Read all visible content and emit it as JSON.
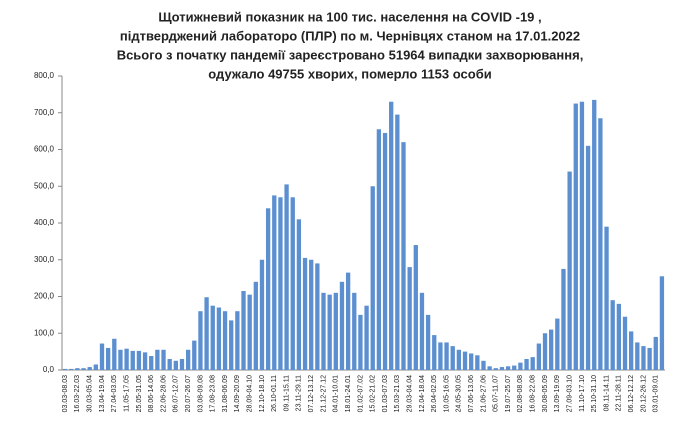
{
  "chart_data": {
    "type": "bar",
    "title": [
      "Щотижневий показник  на 100 тис. населення на COVID -19 ,",
      "підтверджений лабораторо (ПЛР) по м. Чернівцях станом на 17.01.2022",
      "Всього з початку пандемії зареєстровано 51964 випадки захворювання,",
      "одужало 49755 хворих, померло 1153 особи"
    ],
    "categories": [
      "03.03-08.03",
      null,
      "16.03-22.03",
      null,
      "30.03-05.04",
      null,
      "13.04-19.04",
      null,
      "27.04-03.05",
      null,
      "11.05-17.05",
      null,
      "25.05-31.05",
      null,
      "08.06-14.06",
      null,
      "22.06-28.06",
      null,
      "06.07-12.07",
      null,
      "20.07-26.07",
      null,
      "03.08-09.08",
      null,
      "17.08-23.08",
      null,
      "31.08-06.09",
      null,
      "14.09-20.09",
      null,
      "28.09-04.10",
      null,
      "12.10-18.10",
      null,
      "26.10-01.11",
      null,
      "09.11-15.11",
      null,
      "23.11-29.11",
      null,
      "07.12-13.12",
      null,
      "21.12-27.12",
      null,
      "04.01-10.01",
      null,
      "18.01-24.01",
      null,
      "01.02-07.02",
      null,
      "15.02-21.02",
      null,
      "01.03-07.03",
      null,
      "15.03-21.03",
      null,
      "29.03-04.04",
      null,
      "12.04-18.04",
      null,
      "26.04-02.05",
      null,
      "10.05-16.05",
      null,
      "24.05-30.05",
      null,
      "07.06-13.06",
      null,
      "21.06-27.06",
      null,
      "05.07-11.07",
      null,
      "19.07-25.07",
      null,
      "02.08-08.08",
      null,
      "16.08-22.08",
      null,
      "30.08-05.09",
      null,
      "13.09-19.09",
      null,
      "27.09-03.10",
      null,
      "11.10-17.10",
      null,
      "25.10-31.10",
      null,
      "08.11-14.11",
      null,
      "22.11-28.11",
      null,
      "06.12-12.12",
      null,
      "20.12-26.12",
      null,
      "03.01-09.01",
      null
    ],
    "values": [
      3,
      3,
      5,
      5,
      8,
      15,
      72,
      60,
      85,
      55,
      58,
      52,
      52,
      48,
      38,
      55,
      55,
      30,
      25,
      30,
      55,
      80,
      160,
      198,
      175,
      170,
      160,
      135,
      160,
      215,
      205,
      240,
      300,
      440,
      475,
      470,
      505,
      470,
      410,
      305,
      300,
      290,
      210,
      205,
      210,
      240,
      265,
      210,
      150,
      175,
      500,
      655,
      645,
      730,
      695,
      620,
      280,
      340,
      210,
      150,
      95,
      75,
      75,
      65,
      55,
      50,
      45,
      40,
      25,
      10,
      5,
      8,
      10,
      12,
      20,
      30,
      35,
      72,
      100,
      110,
      140,
      275,
      540,
      725,
      730,
      610,
      735,
      685,
      390,
      190,
      180,
      145,
      105,
      75,
      65,
      60,
      90,
      255
    ],
    "color": "#5b8fd0",
    "ylim": [
      0,
      800
    ],
    "yticks": [
      {
        "value": 0,
        "label": "0,0"
      },
      {
        "value": 100,
        "label": "100,0"
      },
      {
        "value": 200,
        "label": "200,0"
      },
      {
        "value": 300,
        "label": "300,0"
      },
      {
        "value": 400,
        "label": "400,0"
      },
      {
        "value": 500,
        "label": "500,0"
      },
      {
        "value": 600,
        "label": "600,0"
      },
      {
        "value": 700,
        "label": "700,0"
      },
      {
        "value": 800,
        "label": "800,0"
      }
    ],
    "grid": false
  }
}
